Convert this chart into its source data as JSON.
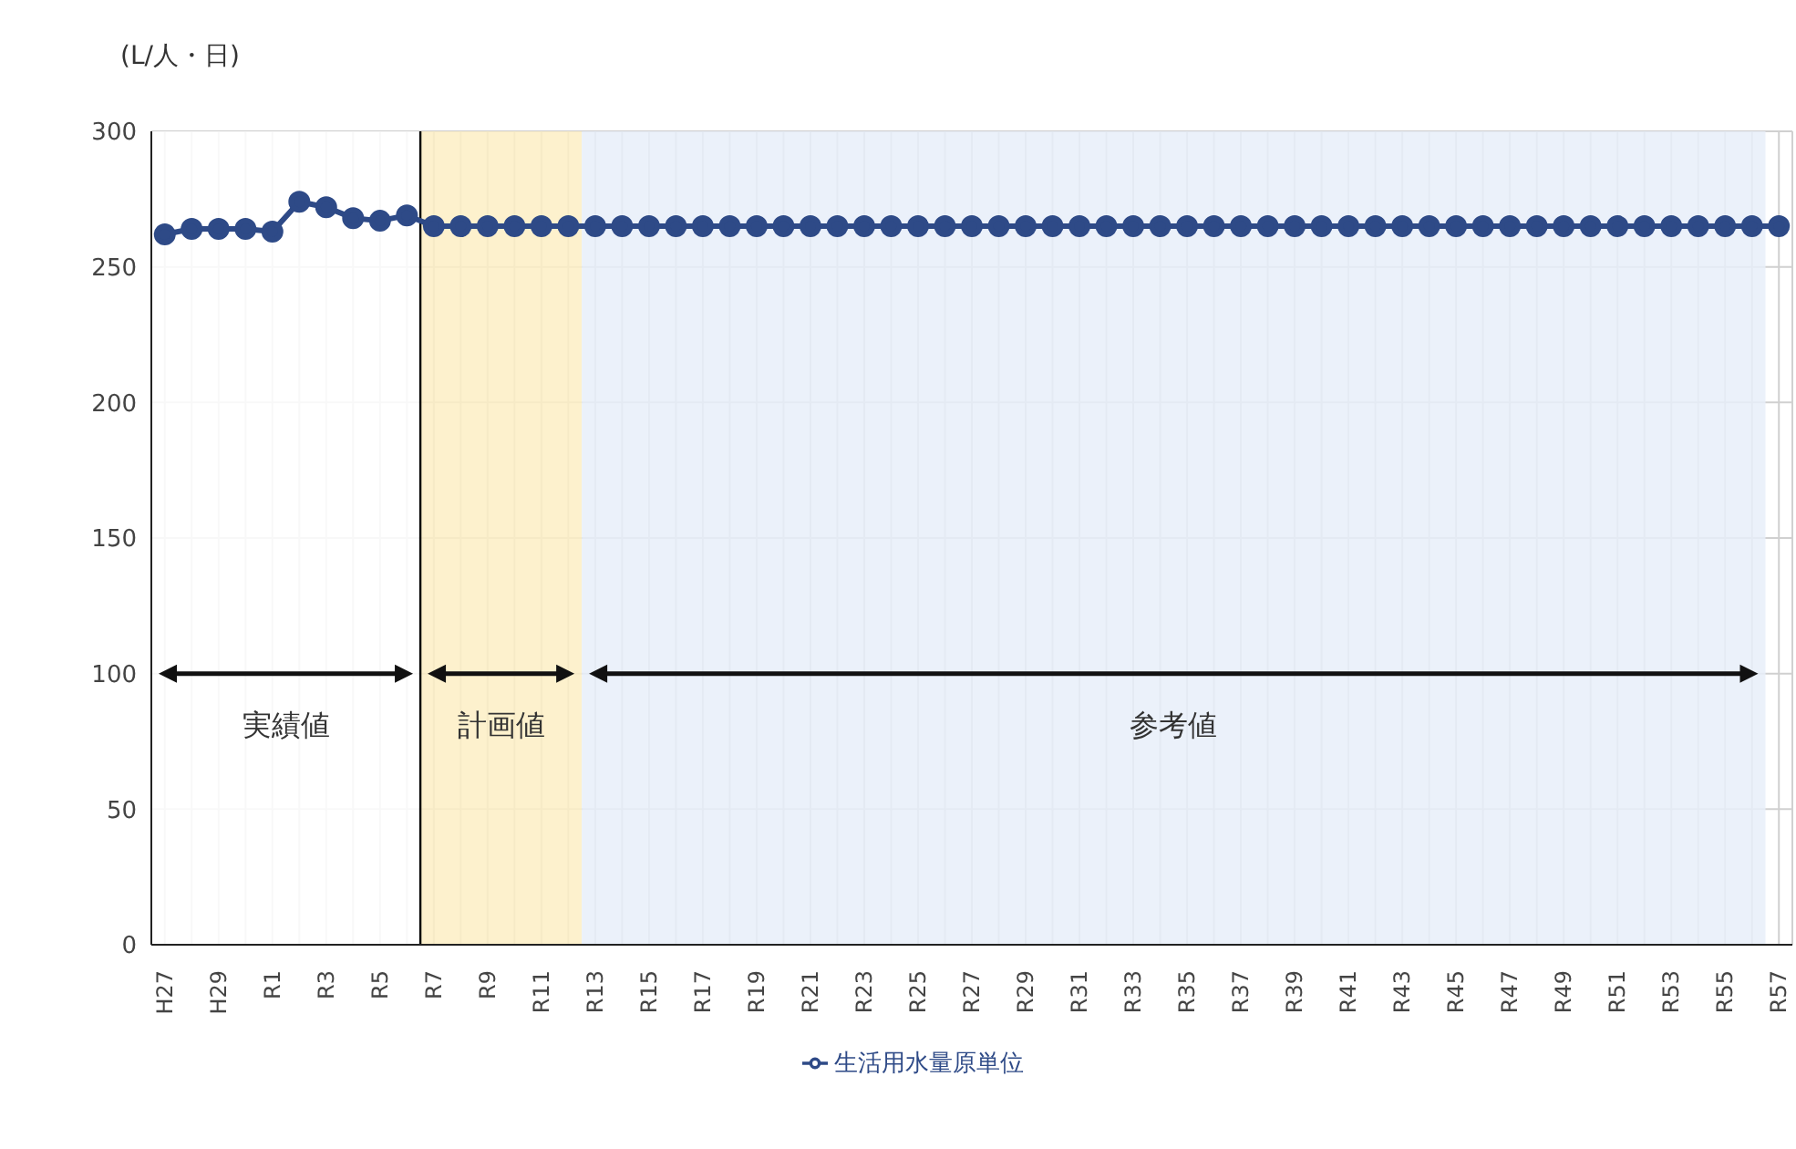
{
  "chart_data": {
    "type": "line",
    "ylabel": "(L/人・日)",
    "categories": [
      "H27",
      null,
      "H29",
      null,
      "R1",
      null,
      "R3",
      null,
      "R5",
      null,
      "R7",
      null,
      "R9",
      null,
      "R11",
      null,
      "R13",
      null,
      "R15",
      null,
      "R17",
      null,
      "R19",
      null,
      "R21",
      null,
      "R23",
      null,
      "R25",
      null,
      "R27",
      null,
      "R29",
      null,
      "R31",
      null,
      "R33",
      null,
      "R35",
      null,
      "R37",
      null,
      "R39",
      null,
      "R41",
      null,
      "R43",
      null,
      "R45",
      null,
      "R47",
      null,
      "R49",
      null,
      "R51",
      null,
      "R53",
      null,
      "R55",
      null,
      "R57"
    ],
    "series": [
      {
        "name": "生活用水量原単位",
        "color": "#2e4a87",
        "values": [
          262,
          264,
          264,
          264,
          263,
          274,
          272,
          268,
          267,
          269,
          265,
          265,
          265,
          265,
          265,
          265,
          265,
          265,
          265,
          265,
          265,
          265,
          265,
          265,
          265,
          265,
          265,
          265,
          265,
          265,
          265,
          265,
          265,
          265,
          265,
          265,
          265,
          265,
          265,
          265,
          265,
          265,
          265,
          265,
          265,
          265,
          265,
          265,
          265,
          265,
          265,
          265,
          265,
          265,
          265,
          265,
          265,
          265,
          265,
          265,
          265
        ]
      }
    ],
    "ylim": [
      0,
      300
    ],
    "yticks": [
      0,
      50,
      100,
      150,
      200,
      250,
      300
    ],
    "grid": true,
    "legend": "bottom",
    "marker": "circle",
    "line_style": "solid",
    "bands": [
      {
        "axis": "x",
        "from": "H27",
        "to": "R7",
        "label": "実績値",
        "color": "#ffffff"
      },
      {
        "axis": "x",
        "from": "R7",
        "to": "R13",
        "label": "計画値",
        "color": "#fdeec4"
      },
      {
        "axis": "x",
        "from": "R13",
        "to": "R57",
        "label": "参考値",
        "color": "#e7eff9"
      }
    ],
    "ref_lines": [
      {
        "axis": "x",
        "value": "R7",
        "color": "#000000"
      }
    ]
  }
}
